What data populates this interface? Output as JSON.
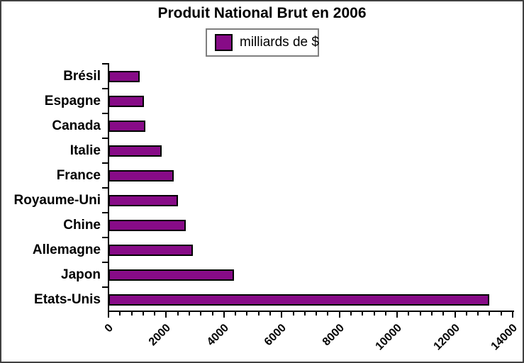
{
  "title": "Produit National Brut en 2006",
  "legend": {
    "label": "milliards de $",
    "swatch_color": "#870b87"
  },
  "chart_data": {
    "type": "bar",
    "orientation": "horizontal",
    "title": "Produit National Brut en 2006",
    "unit": "milliards de $",
    "categories": [
      "Brésil",
      "Espagne",
      "Canada",
      "Italie",
      "France",
      "Royaume-Uni",
      "Chine",
      "Allemagne",
      "Japon",
      "Etats-Unis"
    ],
    "values": [
      1090,
      1240,
      1280,
      1850,
      2250,
      2400,
      2680,
      2920,
      4340,
      13200
    ],
    "xlabel": "",
    "ylabel": "",
    "xlim": [
      0,
      14000
    ],
    "x_major_ticks": [
      0,
      2000,
      4000,
      6000,
      8000,
      10000,
      12000,
      14000
    ],
    "x_minor_tick_interval": 400,
    "bar_color": "#870b87",
    "grid": false,
    "legend_position": "top-center"
  }
}
